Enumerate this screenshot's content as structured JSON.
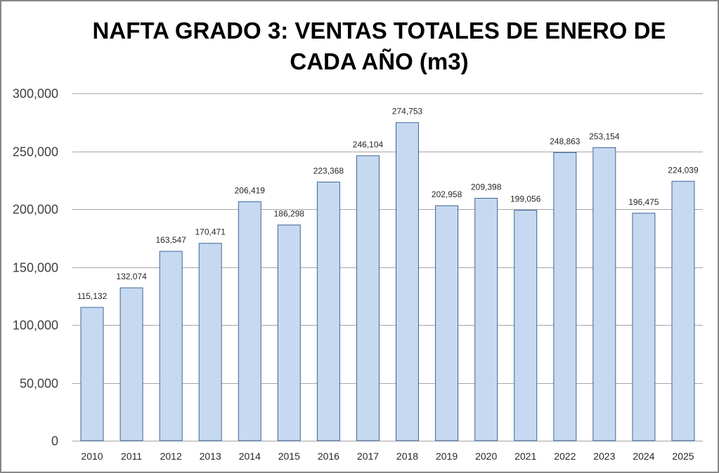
{
  "chart_data": {
    "type": "bar",
    "title": "NAFTA GRADO 3: VENTAS TOTALES DE ENERO DE CADA AÑO (m3)",
    "title_lines": [
      "NAFTA GRADO 3: VENTAS TOTALES DE ENERO DE",
      "CADA AÑO (m3)"
    ],
    "xlabel": "",
    "ylabel": "",
    "categories": [
      "2010",
      "2011",
      "2012",
      "2013",
      "2014",
      "2015",
      "2016",
      "2017",
      "2018",
      "2019",
      "2020",
      "2021",
      "2022",
      "2023",
      "2024",
      "2025"
    ],
    "values": [
      115132,
      132074,
      163547,
      170471,
      206419,
      186298,
      223368,
      246104,
      274753,
      202958,
      209398,
      199056,
      248863,
      253154,
      196475,
      224039
    ],
    "data_labels": [
      "115,132",
      "132,074",
      "163,547",
      "170,471",
      "206,419",
      "186,298",
      "223,368",
      "246,104",
      "274,753",
      "202,958",
      "209,398",
      "199,056",
      "248,863",
      "253,154",
      "196,475",
      "224,039"
    ],
    "ylim": [
      0,
      300000
    ],
    "yticks": [
      0,
      50000,
      100000,
      150000,
      200000,
      250000,
      300000
    ],
    "ytick_labels": [
      "0",
      "50,000",
      "100,000",
      "150,000",
      "200,000",
      "250,000",
      "300,000"
    ],
    "grid": true,
    "legend": "none",
    "colors": {
      "bar_fill": "#c6d9f1",
      "bar_border": "#3d6598",
      "grid": "#a6a6a6",
      "frame": "#878787"
    }
  }
}
